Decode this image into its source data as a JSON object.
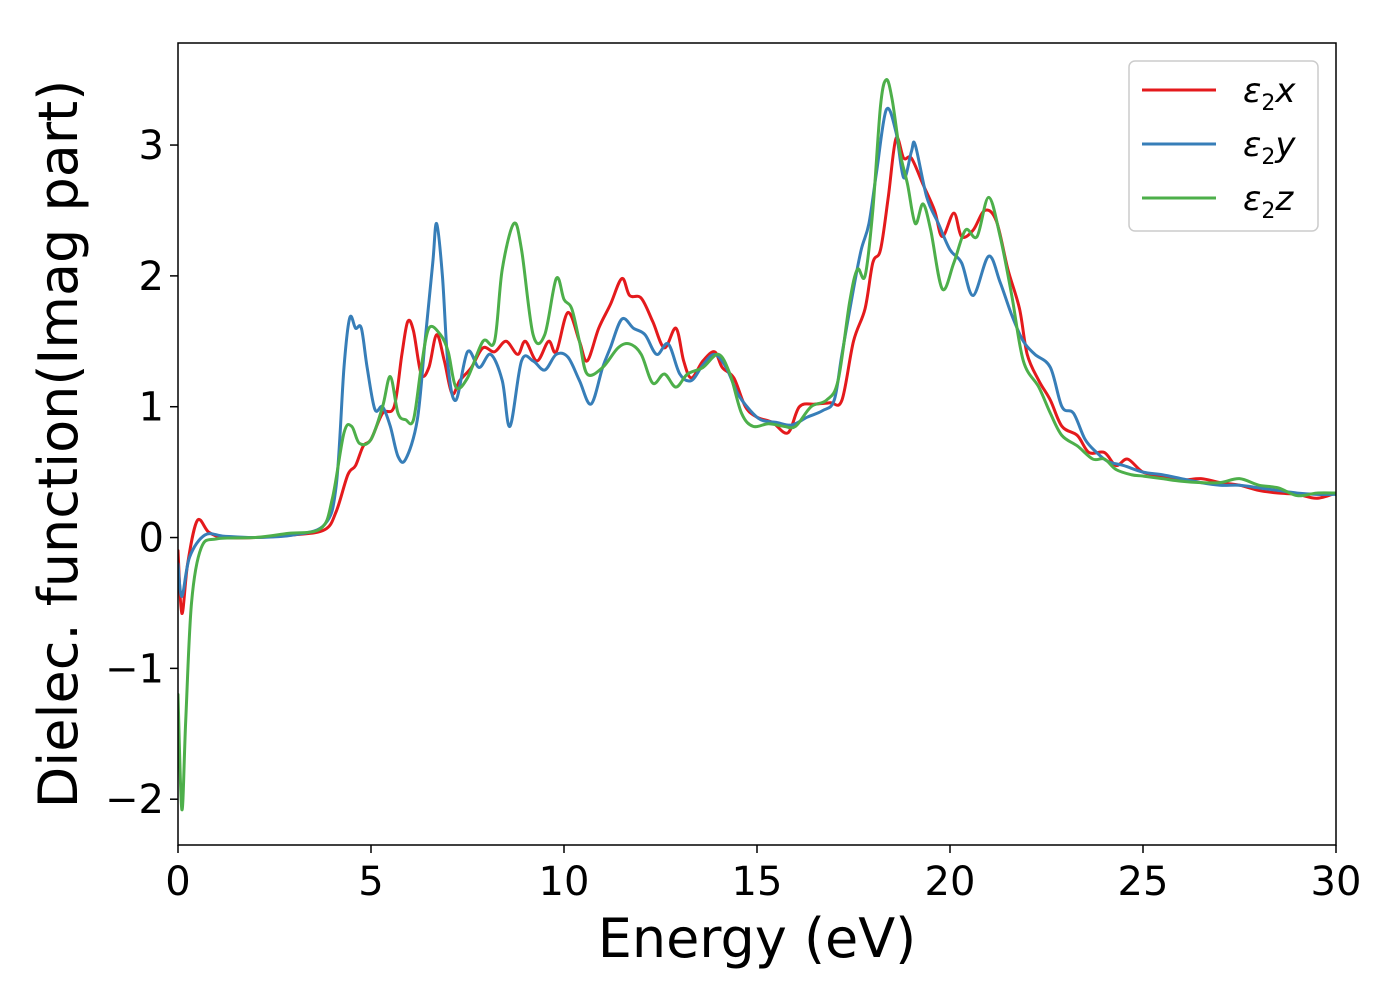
{
  "chart_data": {
    "type": "line",
    "xlabel": "Energy (eV)",
    "ylabel": "Dielec. function(Imag part)",
    "xlim": [
      0,
      30
    ],
    "ylim": [
      -2.35,
      3.78
    ],
    "xticks": [
      0,
      5,
      10,
      15,
      20,
      25,
      30
    ],
    "yticks": [
      -2,
      -1,
      0,
      1,
      2,
      3
    ],
    "grid": false,
    "legend_position": "top-right",
    "series": [
      {
        "name": "ε2x",
        "legend": {
          "symbol": "ε",
          "sub": "2",
          "var": "x"
        },
        "color": "#e41a1c",
        "points": [
          [
            0,
            -0.1
          ],
          [
            0.1,
            -0.58
          ],
          [
            0.25,
            -0.2
          ],
          [
            0.5,
            0.13
          ],
          [
            0.8,
            0.04
          ],
          [
            1.2,
            0.0
          ],
          [
            2.0,
            0.0
          ],
          [
            3.0,
            0.02
          ],
          [
            3.8,
            0.06
          ],
          [
            4.1,
            0.2
          ],
          [
            4.4,
            0.48
          ],
          [
            4.6,
            0.55
          ],
          [
            4.8,
            0.7
          ],
          [
            5.0,
            0.75
          ],
          [
            5.3,
            0.95
          ],
          [
            5.6,
            1.0
          ],
          [
            5.8,
            1.4
          ],
          [
            5.95,
            1.65
          ],
          [
            6.1,
            1.58
          ],
          [
            6.3,
            1.25
          ],
          [
            6.5,
            1.3
          ],
          [
            6.7,
            1.55
          ],
          [
            6.9,
            1.35
          ],
          [
            7.1,
            1.1
          ],
          [
            7.3,
            1.2
          ],
          [
            7.6,
            1.3
          ],
          [
            7.9,
            1.45
          ],
          [
            8.2,
            1.42
          ],
          [
            8.5,
            1.5
          ],
          [
            8.8,
            1.4
          ],
          [
            9.0,
            1.5
          ],
          [
            9.3,
            1.35
          ],
          [
            9.6,
            1.5
          ],
          [
            9.8,
            1.42
          ],
          [
            10.1,
            1.72
          ],
          [
            10.4,
            1.5
          ],
          [
            10.6,
            1.35
          ],
          [
            10.9,
            1.6
          ],
          [
            11.2,
            1.78
          ],
          [
            11.5,
            1.98
          ],
          [
            11.7,
            1.85
          ],
          [
            12.0,
            1.83
          ],
          [
            12.3,
            1.65
          ],
          [
            12.6,
            1.45
          ],
          [
            12.9,
            1.6
          ],
          [
            13.1,
            1.35
          ],
          [
            13.3,
            1.22
          ],
          [
            13.6,
            1.35
          ],
          [
            13.9,
            1.42
          ],
          [
            14.1,
            1.3
          ],
          [
            14.4,
            1.22
          ],
          [
            14.7,
            1.0
          ],
          [
            15.0,
            0.92
          ],
          [
            15.4,
            0.88
          ],
          [
            15.8,
            0.8
          ],
          [
            16.1,
            1.0
          ],
          [
            16.5,
            1.02
          ],
          [
            16.9,
            1.03
          ],
          [
            17.2,
            1.05
          ],
          [
            17.5,
            1.5
          ],
          [
            17.8,
            1.75
          ],
          [
            18.0,
            2.1
          ],
          [
            18.2,
            2.2
          ],
          [
            18.4,
            2.6
          ],
          [
            18.6,
            3.05
          ],
          [
            18.8,
            2.9
          ],
          [
            19.0,
            2.9
          ],
          [
            19.3,
            2.7
          ],
          [
            19.6,
            2.5
          ],
          [
            19.8,
            2.3
          ],
          [
            20.1,
            2.48
          ],
          [
            20.3,
            2.3
          ],
          [
            20.6,
            2.35
          ],
          [
            20.9,
            2.5
          ],
          [
            21.2,
            2.42
          ],
          [
            21.5,
            2.05
          ],
          [
            21.8,
            1.75
          ],
          [
            22.0,
            1.4
          ],
          [
            22.3,
            1.2
          ],
          [
            22.6,
            1.05
          ],
          [
            22.9,
            0.85
          ],
          [
            23.3,
            0.78
          ],
          [
            23.6,
            0.65
          ],
          [
            24.0,
            0.65
          ],
          [
            24.3,
            0.55
          ],
          [
            24.6,
            0.6
          ],
          [
            25.0,
            0.5
          ],
          [
            25.5,
            0.47
          ],
          [
            26.0,
            0.44
          ],
          [
            26.5,
            0.45
          ],
          [
            27.0,
            0.42
          ],
          [
            27.5,
            0.4
          ],
          [
            28.0,
            0.36
          ],
          [
            28.5,
            0.34
          ],
          [
            29.0,
            0.33
          ],
          [
            29.5,
            0.3
          ],
          [
            30.0,
            0.34
          ]
        ]
      },
      {
        "name": "ε2y",
        "legend": {
          "symbol": "ε",
          "sub": "2",
          "var": "y"
        },
        "color": "#377eb8",
        "points": [
          [
            0,
            -0.2
          ],
          [
            0.1,
            -0.45
          ],
          [
            0.3,
            -0.15
          ],
          [
            0.7,
            0.02
          ],
          [
            1.2,
            0.01
          ],
          [
            2.0,
            0.0
          ],
          [
            3.0,
            0.02
          ],
          [
            3.8,
            0.1
          ],
          [
            4.1,
            0.4
          ],
          [
            4.3,
            1.3
          ],
          [
            4.45,
            1.68
          ],
          [
            4.6,
            1.6
          ],
          [
            4.75,
            1.6
          ],
          [
            4.9,
            1.3
          ],
          [
            5.1,
            0.98
          ],
          [
            5.3,
            1.0
          ],
          [
            5.5,
            0.85
          ],
          [
            5.7,
            0.62
          ],
          [
            5.9,
            0.6
          ],
          [
            6.2,
            0.9
          ],
          [
            6.4,
            1.5
          ],
          [
            6.6,
            2.1
          ],
          [
            6.7,
            2.4
          ],
          [
            6.85,
            2.0
          ],
          [
            7.0,
            1.3
          ],
          [
            7.2,
            1.05
          ],
          [
            7.5,
            1.42
          ],
          [
            7.8,
            1.3
          ],
          [
            8.1,
            1.4
          ],
          [
            8.4,
            1.2
          ],
          [
            8.6,
            0.85
          ],
          [
            8.9,
            1.35
          ],
          [
            9.2,
            1.35
          ],
          [
            9.5,
            1.28
          ],
          [
            9.8,
            1.4
          ],
          [
            10.1,
            1.38
          ],
          [
            10.4,
            1.2
          ],
          [
            10.7,
            1.02
          ],
          [
            11.0,
            1.3
          ],
          [
            11.2,
            1.45
          ],
          [
            11.5,
            1.67
          ],
          [
            11.8,
            1.6
          ],
          [
            12.1,
            1.55
          ],
          [
            12.4,
            1.4
          ],
          [
            12.7,
            1.48
          ],
          [
            13.0,
            1.25
          ],
          [
            13.3,
            1.2
          ],
          [
            13.6,
            1.32
          ],
          [
            13.9,
            1.4
          ],
          [
            14.2,
            1.3
          ],
          [
            14.5,
            1.1
          ],
          [
            14.8,
            0.98
          ],
          [
            15.1,
            0.9
          ],
          [
            15.5,
            0.88
          ],
          [
            15.9,
            0.86
          ],
          [
            16.3,
            0.92
          ],
          [
            16.7,
            0.97
          ],
          [
            17.0,
            1.05
          ],
          [
            17.2,
            1.4
          ],
          [
            17.5,
            1.9
          ],
          [
            17.7,
            2.2
          ],
          [
            17.9,
            2.4
          ],
          [
            18.1,
            2.8
          ],
          [
            18.35,
            3.27
          ],
          [
            18.6,
            3.1
          ],
          [
            18.8,
            2.75
          ],
          [
            19.0,
            2.95
          ],
          [
            19.1,
            3.0
          ],
          [
            19.4,
            2.6
          ],
          [
            19.7,
            2.4
          ],
          [
            20.0,
            2.2
          ],
          [
            20.3,
            2.1
          ],
          [
            20.6,
            1.85
          ],
          [
            21.0,
            2.15
          ],
          [
            21.3,
            1.95
          ],
          [
            21.6,
            1.7
          ],
          [
            21.9,
            1.5
          ],
          [
            22.2,
            1.4
          ],
          [
            22.6,
            1.3
          ],
          [
            22.9,
            1.0
          ],
          [
            23.2,
            0.95
          ],
          [
            23.5,
            0.75
          ],
          [
            23.8,
            0.65
          ],
          [
            24.1,
            0.58
          ],
          [
            24.5,
            0.55
          ],
          [
            25.0,
            0.5
          ],
          [
            25.5,
            0.48
          ],
          [
            26.0,
            0.45
          ],
          [
            26.5,
            0.42
          ],
          [
            27.0,
            0.4
          ],
          [
            27.5,
            0.4
          ],
          [
            28.0,
            0.38
          ],
          [
            28.5,
            0.36
          ],
          [
            29.0,
            0.34
          ],
          [
            29.5,
            0.33
          ],
          [
            30.0,
            0.33
          ]
        ]
      },
      {
        "name": "ε2z",
        "legend": {
          "symbol": "ε",
          "sub": "2",
          "var": "z"
        },
        "color": "#4daf4a",
        "points": [
          [
            0,
            -1.2
          ],
          [
            0.1,
            -2.08
          ],
          [
            0.2,
            -1.4
          ],
          [
            0.35,
            -0.5
          ],
          [
            0.6,
            -0.08
          ],
          [
            1.0,
            -0.01
          ],
          [
            2.0,
            0.0
          ],
          [
            2.8,
            0.03
          ],
          [
            3.7,
            0.07
          ],
          [
            4.0,
            0.3
          ],
          [
            4.3,
            0.8
          ],
          [
            4.5,
            0.85
          ],
          [
            4.7,
            0.72
          ],
          [
            5.0,
            0.75
          ],
          [
            5.3,
            1.0
          ],
          [
            5.5,
            1.23
          ],
          [
            5.7,
            0.95
          ],
          [
            5.9,
            0.9
          ],
          [
            6.1,
            0.9
          ],
          [
            6.3,
            1.3
          ],
          [
            6.5,
            1.6
          ],
          [
            6.8,
            1.55
          ],
          [
            7.0,
            1.42
          ],
          [
            7.2,
            1.15
          ],
          [
            7.5,
            1.22
          ],
          [
            7.9,
            1.5
          ],
          [
            8.2,
            1.5
          ],
          [
            8.4,
            2.05
          ],
          [
            8.7,
            2.4
          ],
          [
            8.9,
            2.2
          ],
          [
            9.2,
            1.55
          ],
          [
            9.5,
            1.55
          ],
          [
            9.8,
            1.98
          ],
          [
            10.0,
            1.82
          ],
          [
            10.2,
            1.75
          ],
          [
            10.4,
            1.5
          ],
          [
            10.6,
            1.25
          ],
          [
            11.0,
            1.3
          ],
          [
            11.4,
            1.45
          ],
          [
            11.7,
            1.48
          ],
          [
            12.0,
            1.4
          ],
          [
            12.3,
            1.18
          ],
          [
            12.6,
            1.25
          ],
          [
            12.9,
            1.15
          ],
          [
            13.2,
            1.25
          ],
          [
            13.6,
            1.3
          ],
          [
            14.0,
            1.4
          ],
          [
            14.3,
            1.25
          ],
          [
            14.6,
            0.95
          ],
          [
            14.9,
            0.85
          ],
          [
            15.3,
            0.87
          ],
          [
            15.7,
            0.85
          ],
          [
            16.0,
            0.85
          ],
          [
            16.4,
            1.0
          ],
          [
            16.8,
            1.05
          ],
          [
            17.1,
            1.2
          ],
          [
            17.4,
            1.8
          ],
          [
            17.6,
            2.05
          ],
          [
            17.8,
            2.0
          ],
          [
            18.0,
            2.5
          ],
          [
            18.2,
            3.3
          ],
          [
            18.35,
            3.5
          ],
          [
            18.5,
            3.35
          ],
          [
            18.7,
            2.95
          ],
          [
            18.9,
            2.7
          ],
          [
            19.1,
            2.4
          ],
          [
            19.3,
            2.55
          ],
          [
            19.5,
            2.35
          ],
          [
            19.8,
            1.9
          ],
          [
            20.1,
            2.1
          ],
          [
            20.4,
            2.35
          ],
          [
            20.7,
            2.3
          ],
          [
            21.0,
            2.6
          ],
          [
            21.3,
            2.3
          ],
          [
            21.6,
            1.85
          ],
          [
            21.9,
            1.35
          ],
          [
            22.3,
            1.15
          ],
          [
            22.6,
            0.95
          ],
          [
            22.9,
            0.78
          ],
          [
            23.3,
            0.7
          ],
          [
            23.7,
            0.6
          ],
          [
            24.0,
            0.6
          ],
          [
            24.3,
            0.52
          ],
          [
            24.7,
            0.48
          ],
          [
            25.0,
            0.47
          ],
          [
            25.5,
            0.45
          ],
          [
            26.0,
            0.43
          ],
          [
            26.5,
            0.42
          ],
          [
            27.0,
            0.42
          ],
          [
            27.5,
            0.45
          ],
          [
            28.0,
            0.4
          ],
          [
            28.5,
            0.38
          ],
          [
            29.0,
            0.32
          ],
          [
            29.5,
            0.34
          ],
          [
            30.0,
            0.34
          ]
        ]
      }
    ]
  }
}
